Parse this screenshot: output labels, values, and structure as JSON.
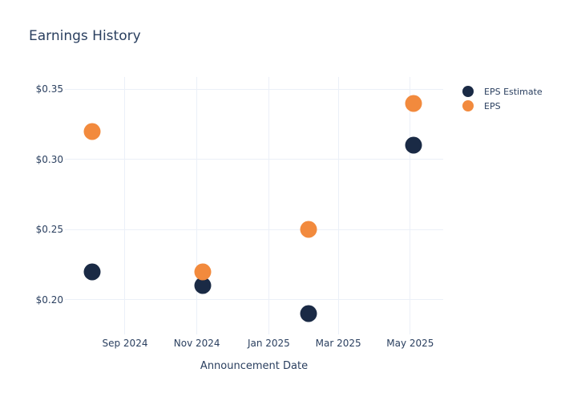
{
  "chart_data": {
    "type": "scatter",
    "title": "Earnings History",
    "xlabel": "Announcement Date",
    "ylabel": "",
    "grid": true,
    "legend_position": "right",
    "ylim": [
      0.1754,
      0.3586
    ],
    "x_range_dates": [
      "2024-07-12",
      "2025-05-29"
    ],
    "y_ticks": [
      {
        "label": "$0.20",
        "value": 0.2
      },
      {
        "label": "$0.25",
        "value": 0.25
      },
      {
        "label": "$0.30",
        "value": 0.3
      },
      {
        "label": "$0.35",
        "value": 0.35
      }
    ],
    "x_ticks": [
      {
        "label": "Sep 2024",
        "date": "2024-09-01"
      },
      {
        "label": "Nov 2024",
        "date": "2024-11-01"
      },
      {
        "label": "Jan 2025",
        "date": "2025-01-01"
      },
      {
        "label": "Mar 2025",
        "date": "2025-03-01"
      },
      {
        "label": "May 2025",
        "date": "2025-05-01"
      }
    ],
    "series": [
      {
        "name": "EPS Estimate",
        "marker": "circle",
        "color": "#1a2a45",
        "points": [
          {
            "date": "2024-08-04",
            "value": 0.22
          },
          {
            "date": "2024-11-06",
            "value": 0.21
          },
          {
            "date": "2025-02-04",
            "value": 0.19
          },
          {
            "date": "2025-05-04",
            "value": 0.31
          }
        ]
      },
      {
        "name": "EPS",
        "marker": "circle",
        "color": "#f28a3d",
        "points": [
          {
            "date": "2024-08-04",
            "value": 0.32
          },
          {
            "date": "2024-11-06",
            "value": 0.22
          },
          {
            "date": "2025-02-04",
            "value": 0.25
          },
          {
            "date": "2025-05-04",
            "value": 0.34
          }
        ]
      }
    ],
    "colors": {
      "text": "#2a3f5f",
      "grid": "#ebf0f8",
      "background": "#ffffff"
    }
  }
}
